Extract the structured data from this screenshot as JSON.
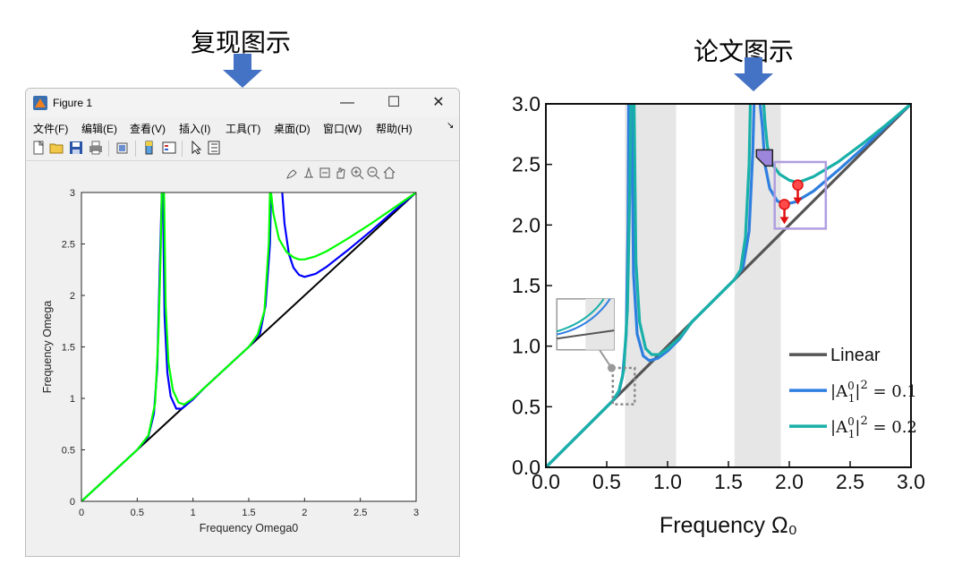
{
  "headings": {
    "left": "复现图示",
    "right": "论文图示"
  },
  "colors": {
    "arrow": "#4472c4",
    "matlab_blue": "#0000ff",
    "matlab_green": "#00ff00",
    "paper_blue": "#2f7fe0",
    "paper_teal": "#18b0a8",
    "paper_linear": "#555555",
    "shade": "#e6e6e6"
  },
  "window": {
    "title": "Figure 1",
    "minimize": "—",
    "maximize": "☐",
    "close": "✕",
    "menus": [
      "文件(F)",
      "编辑(E)",
      "查看(V)",
      "插入(I)",
      "工具(T)",
      "桌面(D)",
      "窗口(W)",
      "帮助(H)"
    ],
    "menu_overflow": "↘",
    "toolbar_icons": [
      "new-figure-icon",
      "open-icon",
      "save-icon",
      "print-icon",
      "link-icon",
      "colorbar-icon",
      "legend-icon",
      "pointer-icon",
      "property-icon"
    ],
    "axes_toolbar_icons": [
      "brush-icon",
      "data-tip-icon",
      "rotate-icon",
      "pan-icon",
      "zoom-in-icon",
      "zoom-out-icon",
      "home-icon"
    ]
  },
  "chart_data": [
    {
      "type": "line",
      "title": "",
      "xlabel": "Frequency Omega0",
      "ylabel": "Frequency Omega",
      "xlim": [
        0,
        3
      ],
      "ylim": [
        0,
        3
      ],
      "xticks": [
        "0",
        "0.5",
        "1",
        "1.5",
        "2",
        "2.5",
        "3"
      ],
      "yticks": [
        "0",
        "0.5",
        "1",
        "1.5",
        "2",
        "2.5",
        "3"
      ],
      "grid": false,
      "series": [
        {
          "color": "#000000",
          "x": [
            0,
            3
          ],
          "y": [
            0,
            3
          ]
        },
        {
          "color": "#0000ff",
          "branches": [
            {
              "x": [
                0,
                0.5,
                0.6,
                0.65,
                0.68,
                0.7,
                0.72
              ],
              "y": [
                0,
                0.5,
                0.63,
                0.85,
                1.3,
                2.2,
                3.0
              ]
            },
            {
              "x": [
                0.73,
                0.745,
                0.77,
                0.8,
                0.85,
                0.9,
                1.0,
                1.1,
                1.2
              ],
              "y": [
                3.0,
                1.8,
                1.25,
                1.02,
                0.9,
                0.9,
                0.99,
                1.1,
                1.2
              ]
            },
            {
              "x": [
                1.2,
                1.5,
                1.6,
                1.65,
                1.69,
                1.7
              ],
              "y": [
                1.2,
                1.5,
                1.63,
                1.9,
                2.5,
                3.0
              ]
            },
            {
              "x": [
                1.8,
                1.82,
                1.86,
                1.9,
                1.95,
                2.0,
                2.1,
                2.2,
                2.4,
                2.6,
                2.8,
                3.0
              ],
              "y": [
                3.0,
                2.7,
                2.4,
                2.27,
                2.2,
                2.18,
                2.21,
                2.28,
                2.45,
                2.63,
                2.82,
                3.0
              ]
            }
          ]
        },
        {
          "color": "#00ff00",
          "branches": [
            {
              "x": [
                0,
                0.5,
                0.6,
                0.66,
                0.69,
                0.71,
                0.72
              ],
              "y": [
                0,
                0.5,
                0.64,
                0.95,
                1.6,
                2.4,
                3.0
              ]
            },
            {
              "x": [
                0.74,
                0.755,
                0.78,
                0.82,
                0.87,
                0.92,
                1.0,
                1.1,
                1.2
              ],
              "y": [
                3.0,
                1.9,
                1.35,
                1.08,
                0.96,
                0.94,
                1.0,
                1.1,
                1.2
              ]
            },
            {
              "x": [
                1.2,
                1.5,
                1.58,
                1.64,
                1.68,
                1.69
              ],
              "y": [
                1.2,
                1.5,
                1.62,
                1.85,
                2.5,
                3.0
              ]
            },
            {
              "x": [
                1.7,
                1.72,
                1.77,
                1.84,
                1.9,
                1.95,
                2.0,
                2.1,
                2.2,
                2.4,
                2.6,
                2.8,
                3.0
              ],
              "y": [
                3.0,
                2.8,
                2.55,
                2.42,
                2.37,
                2.35,
                2.35,
                2.38,
                2.43,
                2.56,
                2.7,
                2.85,
                3.0
              ]
            }
          ]
        }
      ]
    },
    {
      "type": "line",
      "title": "",
      "xlabel": "Frequency Ω₀",
      "ylabel": "",
      "xlim": [
        0,
        3
      ],
      "ylim": [
        0,
        3
      ],
      "xticks": [
        "0.0",
        "0.5",
        "1.0",
        "1.5",
        "2.0",
        "2.5",
        "3.0"
      ],
      "yticks": [
        "0.0",
        "0.5",
        "1.0",
        "1.5",
        "2.0",
        "2.5",
        "3.0"
      ],
      "grid": false,
      "shaded_x_ranges": [
        [
          0.65,
          1.07
        ],
        [
          1.55,
          1.93
        ]
      ],
      "legend": [
        {
          "label": "Linear",
          "color": "#555555"
        },
        {
          "label": "|A₁⁰|² = 0.1",
          "base": "|A",
          "sub": "1",
          "sup": "0",
          "sq": "2",
          "rest": " = 0.1",
          "color": "#2f7fe0"
        },
        {
          "label": "|A₁⁰|² = 0.2",
          "base": "|A",
          "sub": "1",
          "sup": "0",
          "sq": "2",
          "rest": " = 0.2",
          "color": "#18b0a8"
        }
      ],
      "legend_position": "bottom-right",
      "series": [
        {
          "name": "Linear",
          "color": "#555555",
          "x": [
            0,
            3
          ],
          "y": [
            0,
            3
          ]
        },
        {
          "name": "|A₁⁰|² = 0.1",
          "color": "#2f7fe0",
          "branches": [
            {
              "x": [
                0,
                0.55,
                0.6,
                0.63,
                0.66,
                0.675,
                0.68
              ],
              "y": [
                0,
                0.55,
                0.62,
                0.75,
                1.1,
                2.0,
                3.0
              ]
            },
            {
              "x": [
                0.705,
                0.72,
                0.75,
                0.8,
                0.85,
                0.92,
                1.0,
                1.1,
                1.2
              ],
              "y": [
                3.0,
                1.6,
                1.1,
                0.92,
                0.88,
                0.9,
                0.96,
                1.06,
                1.2
              ]
            },
            {
              "x": [
                1.2,
                1.55,
                1.62,
                1.67,
                1.7,
                1.71
              ],
              "y": [
                1.2,
                1.55,
                1.65,
                1.95,
                2.6,
                3.0
              ]
            },
            {
              "x": [
                1.76,
                1.78,
                1.8,
                1.84,
                1.9,
                1.96,
                2.05,
                2.2,
                2.4,
                2.6,
                2.8,
                3.0
              ],
              "y": [
                3.0,
                2.8,
                2.5,
                2.3,
                2.2,
                2.17,
                2.19,
                2.28,
                2.45,
                2.63,
                2.82,
                3.0
              ]
            }
          ]
        },
        {
          "name": "|A₁⁰|² = 0.2",
          "color": "#18b0a8",
          "branches": [
            {
              "x": [
                0,
                0.55,
                0.6,
                0.64,
                0.67,
                0.69,
                0.7
              ],
              "y": [
                0,
                0.55,
                0.63,
                0.8,
                1.3,
                2.3,
                3.0
              ]
            },
            {
              "x": [
                0.725,
                0.74,
                0.77,
                0.82,
                0.87,
                0.93,
                1.0,
                1.1,
                1.2
              ],
              "y": [
                3.0,
                1.7,
                1.2,
                0.98,
                0.93,
                0.93,
                0.98,
                1.07,
                1.2
              ]
            },
            {
              "x": [
                1.2,
                1.55,
                1.6,
                1.64,
                1.67,
                1.68
              ],
              "y": [
                1.2,
                1.55,
                1.63,
                1.9,
                2.5,
                3.0
              ]
            },
            {
              "x": [
                1.79,
                1.8,
                1.82,
                1.86,
                1.92,
                2.0,
                2.07,
                2.2,
                2.4,
                2.6,
                2.8,
                3.0
              ],
              "y": [
                3.0,
                2.85,
                2.65,
                2.5,
                2.42,
                2.37,
                2.35,
                2.4,
                2.52,
                2.67,
                2.83,
                3.0
              ]
            }
          ]
        }
      ],
      "markers": [
        {
          "x": 2.07,
          "y": 2.33,
          "color": "#e01010"
        },
        {
          "x": 1.96,
          "y": 2.17,
          "color": "#e01010"
        }
      ]
    }
  ]
}
